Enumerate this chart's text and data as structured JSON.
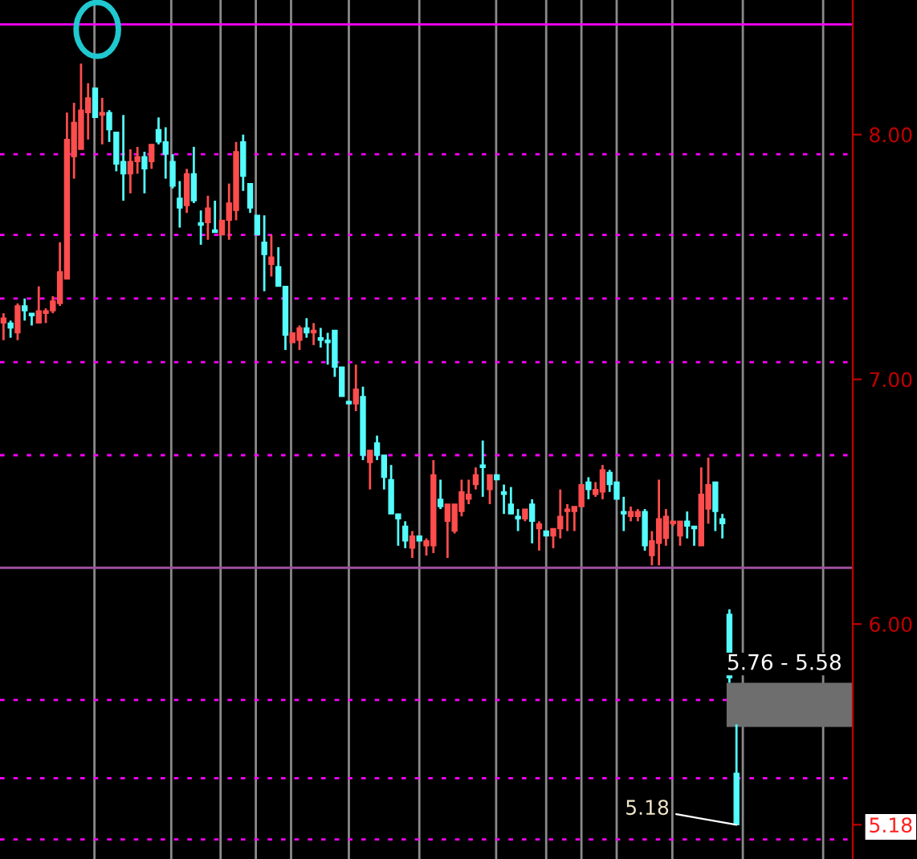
{
  "chart_data": {
    "type": "candlestick",
    "categories": [
      null,
      null,
      null,
      null,
      null,
      null,
      null,
      null,
      null,
      null,
      null,
      null,
      null,
      null,
      null,
      null,
      null,
      null,
      null,
      null,
      null,
      null,
      null,
      null,
      null,
      null,
      null,
      null,
      null,
      null,
      null,
      null,
      null,
      null,
      null,
      null,
      null,
      null,
      null,
      null,
      null,
      null,
      null,
      null,
      null,
      null,
      null,
      null,
      null,
      null,
      null,
      null,
      null,
      null,
      null,
      null,
      null,
      null,
      null,
      null,
      null,
      null,
      null,
      null,
      null,
      null,
      null,
      null,
      null,
      null,
      null,
      null,
      null,
      null,
      null,
      null,
      null,
      null,
      null,
      null,
      null,
      null,
      null,
      null,
      null,
      null,
      null,
      null,
      null,
      null,
      null,
      null,
      null,
      null,
      null,
      null,
      null,
      null,
      null,
      null,
      null,
      null,
      null,
      null,
      null,
      null,
      null,
      null,
      null,
      null,
      null,
      null,
      null,
      null,
      null,
      null,
      null,
      null,
      null,
      null,
      null
    ],
    "ohlc": [
      [
        7.23,
        7.27,
        7.16,
        7.25
      ],
      [
        7.23,
        7.24,
        7.17,
        7.21
      ],
      [
        7.19,
        7.31,
        7.16,
        7.3
      ],
      [
        7.3,
        7.33,
        7.24,
        7.28
      ],
      [
        7.27,
        7.27,
        7.22,
        7.26
      ],
      [
        7.23,
        7.38,
        7.23,
        7.28
      ],
      [
        7.27,
        7.29,
        7.23,
        7.28
      ],
      [
        7.28,
        7.34,
        7.27,
        7.32
      ],
      [
        7.31,
        7.56,
        7.3,
        7.44
      ],
      [
        7.41,
        8.09,
        7.41,
        7.98
      ],
      [
        7.91,
        8.13,
        7.82,
        8.05
      ],
      [
        7.94,
        8.29,
        7.94,
        8.1
      ],
      [
        8.09,
        8.21,
        7.98,
        8.15
      ],
      [
        8.19,
        8.19,
        8.07,
        8.07
      ],
      [
        8.08,
        8.15,
        7.96,
        8.09
      ],
      [
        8.09,
        8.1,
        7.97,
        8.02
      ],
      [
        8.01,
        8.01,
        7.85,
        7.88
      ],
      [
        7.89,
        8.08,
        7.73,
        7.84
      ],
      [
        7.84,
        7.94,
        7.76,
        7.89
      ],
      [
        7.89,
        7.95,
        7.84,
        7.91
      ],
      [
        7.91,
        7.93,
        7.76,
        7.86
      ],
      [
        7.89,
        7.96,
        7.86,
        7.96
      ],
      [
        8.02,
        8.07,
        7.96,
        7.97
      ],
      [
        7.97,
        8.03,
        7.82,
        7.92
      ],
      [
        7.89,
        7.92,
        7.78,
        7.79
      ],
      [
        7.74,
        7.81,
        7.62,
        7.7
      ],
      [
        7.71,
        7.86,
        7.68,
        7.84
      ],
      [
        7.84,
        7.95,
        7.72,
        7.73
      ],
      [
        7.64,
        7.69,
        7.55,
        7.63
      ],
      [
        7.64,
        7.75,
        7.57,
        7.7
      ],
      [
        7.61,
        7.73,
        7.6,
        7.6
      ],
      [
        7.59,
        7.65,
        7.59,
        7.65
      ],
      [
        7.65,
        7.8,
        7.57,
        7.72
      ],
      [
        7.69,
        7.97,
        7.65,
        7.93
      ],
      [
        7.97,
        8.0,
        7.77,
        7.83
      ],
      [
        7.8,
        7.8,
        7.68,
        7.7
      ],
      [
        7.67,
        7.67,
        7.59,
        7.59
      ],
      [
        7.56,
        7.67,
        7.36,
        7.51
      ],
      [
        7.47,
        7.59,
        7.42,
        7.5
      ],
      [
        7.46,
        7.54,
        7.38,
        7.38
      ],
      [
        7.38,
        7.38,
        7.12,
        7.18
      ],
      [
        7.15,
        7.19,
        7.15,
        7.19
      ],
      [
        7.16,
        7.22,
        7.12,
        7.21
      ],
      [
        7.21,
        7.25,
        7.17,
        7.19
      ],
      [
        7.19,
        7.23,
        7.14,
        7.2
      ],
      [
        7.17,
        7.21,
        7.13,
        7.16
      ],
      [
        7.16,
        7.19,
        7.06,
        7.15
      ],
      [
        7.2,
        7.2,
        7.01,
        7.05
      ],
      [
        7.05,
        7.05,
        6.93,
        6.93
      ],
      [
        6.91,
        6.91,
        6.9,
        6.9
      ],
      [
        6.9,
        7.06,
        6.87,
        6.96
      ],
      [
        6.93,
        6.97,
        6.67,
        6.69
      ],
      [
        6.66,
        6.71,
        6.55,
        6.71
      ],
      [
        6.74,
        6.77,
        6.67,
        6.69
      ],
      [
        6.69,
        6.69,
        6.55,
        6.6
      ],
      [
        6.59,
        6.65,
        6.45,
        6.45
      ],
      [
        6.45,
        6.45,
        6.32,
        6.43
      ],
      [
        6.4,
        6.42,
        6.31,
        6.34
      ],
      [
        6.31,
        6.38,
        6.27,
        6.36
      ],
      [
        6.36,
        6.36,
        6.34,
        6.34
      ],
      [
        6.32,
        6.35,
        6.28,
        6.34
      ],
      [
        6.32,
        6.67,
        6.29,
        6.61
      ],
      [
        6.51,
        6.59,
        6.47,
        6.48
      ],
      [
        6.42,
        6.49,
        6.27,
        6.49
      ],
      [
        6.38,
        6.49,
        6.37,
        6.49
      ],
      [
        6.46,
        6.59,
        6.44,
        6.54
      ],
      [
        6.51,
        6.59,
        6.49,
        6.53
      ],
      [
        6.57,
        6.64,
        6.55,
        6.61
      ],
      [
        6.65,
        6.75,
        6.52,
        6.64
      ],
      [
        6.55,
        6.61,
        6.49,
        6.61
      ],
      [
        6.61,
        6.61,
        6.59,
        6.59
      ],
      [
        6.54,
        6.57,
        6.45,
        6.53
      ],
      [
        6.49,
        6.56,
        6.45,
        6.45
      ],
      [
        6.44,
        6.47,
        6.38,
        6.43
      ],
      [
        6.43,
        6.47,
        6.42,
        6.47
      ],
      [
        6.49,
        6.51,
        6.33,
        6.42
      ],
      [
        6.39,
        6.42,
        6.3,
        6.41
      ],
      [
        6.38,
        6.38,
        6.36,
        6.36
      ],
      [
        6.36,
        6.39,
        6.31,
        6.39
      ],
      [
        6.39,
        6.55,
        6.35,
        6.44
      ],
      [
        6.46,
        6.49,
        6.38,
        6.47
      ],
      [
        6.46,
        6.48,
        6.38,
        6.48
      ],
      [
        6.48,
        6.57,
        6.48,
        6.57
      ],
      [
        6.58,
        6.6,
        6.51,
        6.55
      ],
      [
        6.53,
        6.58,
        6.52,
        6.55
      ],
      [
        6.54,
        6.65,
        6.51,
        6.63
      ],
      [
        6.62,
        6.63,
        6.54,
        6.57
      ],
      [
        6.58,
        6.58,
        6.51,
        6.51
      ],
      [
        6.46,
        6.52,
        6.38,
        6.45
      ],
      [
        6.44,
        6.48,
        6.42,
        6.46
      ],
      [
        6.44,
        6.47,
        6.42,
        6.46
      ],
      [
        6.46,
        6.47,
        6.3,
        6.32
      ],
      [
        6.28,
        6.38,
        6.24,
        6.34
      ],
      [
        6.33,
        6.59,
        6.24,
        6.43
      ],
      [
        6.35,
        6.47,
        6.32,
        6.44
      ],
      [
        6.41,
        6.42,
        6.4,
        6.42
      ],
      [
        6.36,
        6.42,
        6.32,
        6.42
      ],
      [
        6.42,
        6.46,
        6.35,
        6.4
      ],
      [
        6.4,
        6.4,
        6.32,
        6.39
      ],
      [
        6.32,
        6.64,
        6.32,
        6.53
      ],
      [
        6.47,
        6.68,
        6.41,
        6.57
      ],
      [
        6.58,
        6.58,
        6.38,
        6.46
      ],
      [
        6.43,
        6.45,
        6.35,
        6.41
      ],
      [
        6.04,
        6.06,
        5.76,
        5.78
      ],
      [
        5.39,
        5.59,
        5.18,
        5.18
      ],
      null,
      null,
      null,
      null,
      null,
      null,
      null,
      null,
      null,
      null,
      null,
      null,
      null,
      null,
      null,
      null
    ],
    "colors": [
      "#ff4d4d",
      "#54fcfc",
      "#ff4d4d",
      "#54fcfc",
      "#54fcfc",
      "#ff4d4d",
      "#ff4d4d",
      "#ff4d4d",
      "#ff4d4d",
      "#ff4d4d",
      "#ff4d4d",
      "#ff4d4d",
      "#ff4d4d",
      "#54fcfc",
      "#ff4d4d",
      "#54fcfc",
      "#54fcfc",
      "#54fcfc",
      "#ff4d4d",
      "#ff4d4d",
      "#54fcfc",
      "#ff4d4d",
      "#54fcfc",
      "#54fcfc",
      "#54fcfc",
      "#54fcfc",
      "#ff4d4d",
      "#54fcfc",
      "#54fcfc",
      "#ff4d4d",
      "#54fcfc",
      "#ff4d4d",
      "#ff4d4d",
      "#ff4d4d",
      "#54fcfc",
      "#54fcfc",
      "#54fcfc",
      "#54fcfc",
      "#ff4d4d",
      "#54fcfc",
      "#54fcfc",
      "#ff4d4d",
      "#ff4d4d",
      "#54fcfc",
      "#ff4d4d",
      "#54fcfc",
      "#54fcfc",
      "#54fcfc",
      "#54fcfc",
      "#54fcfc",
      "#ff4d4d",
      "#54fcfc",
      "#ff4d4d",
      "#54fcfc",
      "#54fcfc",
      "#54fcfc",
      "#54fcfc",
      "#54fcfc",
      "#ff4d4d",
      "#54fcfc",
      "#ff4d4d",
      "#ff4d4d",
      "#54fcfc",
      "#ff4d4d",
      "#ff4d4d",
      "#ff4d4d",
      "#ff4d4d",
      "#ff4d4d",
      "#54fcfc",
      "#ff4d4d",
      "#54fcfc",
      "#54fcfc",
      "#54fcfc",
      "#54fcfc",
      "#ff4d4d",
      "#54fcfc",
      "#ff4d4d",
      "#54fcfc",
      "#ff4d4d",
      "#ff4d4d",
      "#ff4d4d",
      "#ff4d4d",
      "#ff4d4d",
      "#54fcfc",
      "#ff4d4d",
      "#ff4d4d",
      "#54fcfc",
      "#54fcfc",
      "#54fcfc",
      "#ff4d4d",
      "#ff4d4d",
      "#54fcfc",
      "#ff4d4d",
      "#ff4d4d",
      "#ff4d4d",
      "#ff4d4d",
      "#ff4d4d",
      "#54fcfc",
      "#54fcfc",
      "#ff4d4d",
      "#ff4d4d",
      "#54fcfc",
      "#54fcfc",
      "#54fcfc",
      "#54fcfc",
      null,
      null,
      null,
      null,
      null,
      null,
      null,
      null,
      null,
      null,
      null,
      null,
      null,
      null,
      null,
      null
    ],
    "ylim": [
      5.04,
      8.55
    ],
    "yticks": [
      {
        "value": 8,
        "label": "8.00"
      },
      {
        "value": 7,
        "label": "7.00"
      },
      {
        "value": 6,
        "label": "6.00"
      },
      {
        "value": 5.18,
        "label": "5.18"
      }
    ],
    "ref_lines": [
      {
        "axis": "y",
        "value": 8.45,
        "color": "#ff00ff",
        "line_style": "solid"
      },
      {
        "axis": "y",
        "value": 7.92,
        "color": "#ff00ff",
        "line_style": "dotted"
      },
      {
        "axis": "y",
        "value": 7.59,
        "color": "#ff00ff",
        "line_style": "dotted"
      },
      {
        "axis": "y",
        "value": 7.33,
        "color": "#ff00ff",
        "line_style": "dotted"
      },
      {
        "axis": "y",
        "value": 7.07,
        "color": "#ff00ff",
        "line_style": "dotted"
      },
      {
        "axis": "y",
        "value": 6.69,
        "color": "#ff00ff",
        "line_style": "dotted"
      },
      {
        "axis": "y",
        "value": 6.23,
        "color": "#a050a0",
        "line_style": "solid"
      },
      {
        "axis": "y",
        "value": 5.69,
        "color": "#ff00ff",
        "line_style": "dotted"
      },
      {
        "axis": "y",
        "value": 5.37,
        "color": "#ff00ff",
        "line_style": "dotted"
      },
      {
        "axis": "y",
        "value": 5.12,
        "color": "#ff00ff",
        "line_style": "dotted"
      }
    ],
    "bands": [
      {
        "axis": "y",
        "from": 5.58,
        "to": 5.76,
        "label": "5.76 - 5.58",
        "color": "#6e6e6e"
      }
    ],
    "annotations": [
      "5.18"
    ],
    "grid": "x"
  }
}
